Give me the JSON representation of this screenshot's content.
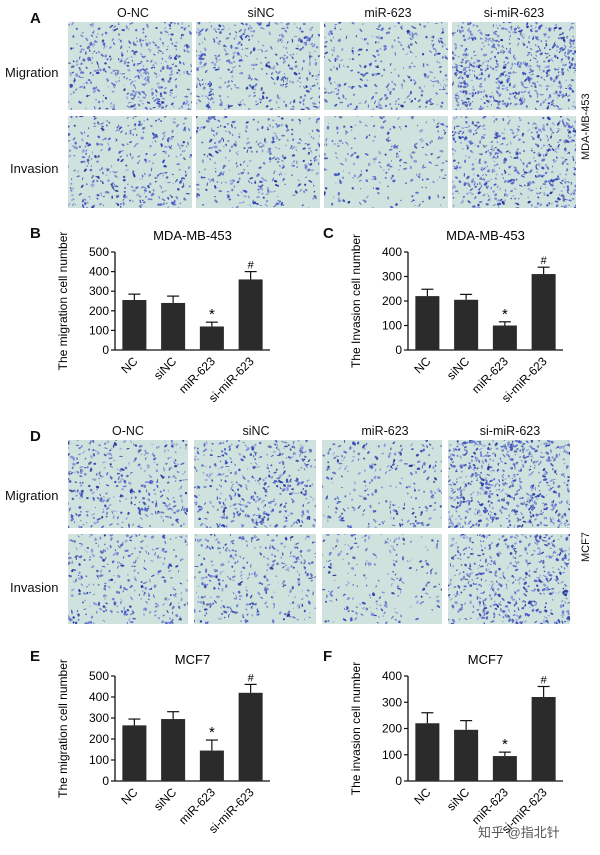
{
  "panel_labels": {
    "A": "A",
    "B": "B",
    "C": "C",
    "D": "D",
    "E": "E",
    "F": "F"
  },
  "mda_section": {
    "columns": [
      "O-NC",
      "siNC",
      "miR-623",
      "si-miR-623"
    ],
    "rows": [
      "Migration",
      "Invasion"
    ],
    "cell_line": "MDA-MB-453"
  },
  "mcf7_section": {
    "columns": [
      "O-NC",
      "siNC",
      "miR-623",
      "si-miR-623"
    ],
    "rows": [
      "Migration",
      "Invasion"
    ],
    "cell_line": "MCF7"
  },
  "watermark": "知乎 @指北针",
  "colors": {
    "bar": "#2b2b2b",
    "axis": "#111111",
    "micro_bg": "#cfe2de",
    "cell": "#2a3fb0"
  },
  "chart_data": [
    {
      "id": "B",
      "type": "bar",
      "title": "MDA-MB-453",
      "ylabel": "The migration cell number",
      "ylim": [
        0,
        500
      ],
      "yticks": [
        0,
        100,
        200,
        300,
        400,
        500
      ],
      "categories": [
        "NC",
        "siNC",
        "miR-623",
        "si-miR-623"
      ],
      "values": [
        255,
        240,
        120,
        360
      ],
      "errors": [
        30,
        35,
        22,
        40
      ],
      "annotations": [
        "",
        "",
        "*",
        "#"
      ]
    },
    {
      "id": "C",
      "type": "bar",
      "title": "MDA-MB-453",
      "ylabel": "The Invasion cell number",
      "ylim": [
        0,
        400
      ],
      "yticks": [
        0,
        100,
        200,
        300,
        400
      ],
      "categories": [
        "NC",
        "siNC",
        "miR-623",
        "si-miR-623"
      ],
      "values": [
        220,
        205,
        100,
        310
      ],
      "errors": [
        28,
        22,
        15,
        28
      ],
      "annotations": [
        "",
        "",
        "*",
        "#"
      ]
    },
    {
      "id": "E",
      "type": "bar",
      "title": "MCF7",
      "ylabel": "The migration cell number",
      "ylim": [
        0,
        500
      ],
      "yticks": [
        0,
        100,
        200,
        300,
        400,
        500
      ],
      "categories": [
        "NC",
        "siNC",
        "miR-623",
        "si-miR-623"
      ],
      "values": [
        265,
        295,
        145,
        420
      ],
      "errors": [
        30,
        35,
        50,
        40
      ],
      "annotations": [
        "",
        "",
        "*",
        "#"
      ]
    },
    {
      "id": "F",
      "type": "bar",
      "title": "MCF7",
      "ylabel": "The invasion cell number",
      "ylim": [
        0,
        400
      ],
      "yticks": [
        0,
        100,
        200,
        300,
        400
      ],
      "categories": [
        "NC",
        "siNC",
        "miR-623",
        "si-miR-623"
      ],
      "values": [
        220,
        195,
        95,
        320
      ],
      "errors": [
        40,
        35,
        15,
        40
      ],
      "annotations": [
        "",
        "",
        "*",
        "#"
      ]
    }
  ]
}
